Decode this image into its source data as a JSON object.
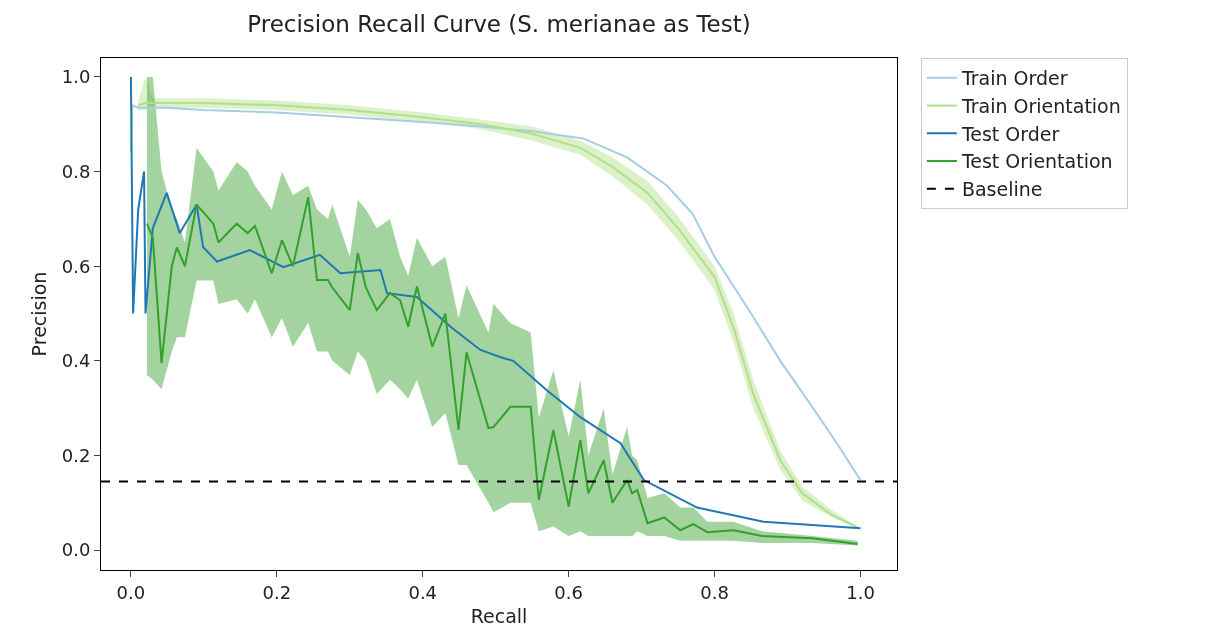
{
  "chart_data": {
    "type": "line",
    "title": "Precision Recall Curve (S. merianae as Test)",
    "xlabel": "Recall",
    "ylabel": "Precision",
    "xlim": [
      -0.041,
      1.05
    ],
    "ylim": [
      -0.042,
      1.04
    ],
    "xticks": [
      {
        "value": 0,
        "label": "0.0"
      },
      {
        "value": 0.2,
        "label": "0.2"
      },
      {
        "value": 0.4,
        "label": "0.4"
      },
      {
        "value": 0.6,
        "label": "0.6"
      },
      {
        "value": 0.8,
        "label": "0.8"
      },
      {
        "value": 1,
        "label": "1.0"
      }
    ],
    "yticks": [
      {
        "value": 0,
        "label": "0.0"
      },
      {
        "value": 0.2,
        "label": "0.2"
      },
      {
        "value": 0.4,
        "label": "0.4"
      },
      {
        "value": 0.6,
        "label": "0.6"
      },
      {
        "value": 0.8,
        "label": "0.8"
      },
      {
        "value": 1,
        "label": "1.0"
      }
    ],
    "grid": false,
    "legend": "top right",
    "line_style": "solid",
    "marker": "none",
    "series": [
      {
        "name": "Train Order",
        "color": "#a6cee3",
        "x": [
          0,
          0.002,
          0.01,
          0.05,
          0.1,
          0.2,
          0.3,
          0.4,
          0.48,
          0.55,
          0.62,
          0.68,
          0.735,
          0.77,
          0.8,
          0.85,
          0.89,
          0.935,
          0.97,
          1.0
        ],
        "values": [
          0.84,
          0.94,
          0.935,
          0.935,
          0.93,
          0.925,
          0.915,
          0.905,
          0.895,
          0.885,
          0.87,
          0.83,
          0.77,
          0.71,
          0.62,
          0.5,
          0.4,
          0.3,
          0.22,
          0.148
        ]
      },
      {
        "name": "Train Orientation",
        "color": "#b2df8a",
        "x": [
          0.01,
          0.02,
          0.03,
          0.1,
          0.2,
          0.3,
          0.4,
          0.48,
          0.55,
          0.616,
          0.66,
          0.708,
          0.75,
          0.8,
          0.826,
          0.853,
          0.89,
          0.92,
          0.96,
          0.996
        ],
        "values": [
          0.94,
          0.945,
          0.945,
          0.945,
          0.94,
          0.93,
          0.915,
          0.9,
          0.88,
          0.85,
          0.81,
          0.755,
          0.68,
          0.577,
          0.47,
          0.33,
          0.19,
          0.12,
          0.075,
          0.048
        ],
        "lower": [
          0.93,
          0.93,
          0.935,
          0.935,
          0.93,
          0.92,
          0.905,
          0.89,
          0.865,
          0.835,
          0.79,
          0.73,
          0.655,
          0.55,
          0.44,
          0.3,
          0.17,
          0.105,
          0.07,
          0.045
        ],
        "upper": [
          0.95,
          1.0,
          0.955,
          0.955,
          0.95,
          0.94,
          0.925,
          0.91,
          0.895,
          0.865,
          0.83,
          0.78,
          0.705,
          0.6,
          0.5,
          0.36,
          0.21,
          0.135,
          0.085,
          0.05
        ]
      },
      {
        "name": "Test Order",
        "color": "#1f78b4",
        "x": [
          0,
          0.003,
          0.01,
          0.018,
          0.02,
          0.03,
          0.049,
          0.067,
          0.09,
          0.099,
          0.118,
          0.163,
          0.209,
          0.259,
          0.287,
          0.342,
          0.351,
          0.392,
          0.438,
          0.479,
          0.506,
          0.524,
          0.57,
          0.616,
          0.671,
          0.703,
          0.776,
          0.867,
          1.0
        ],
        "values": [
          1.0,
          0.5,
          0.72,
          0.8,
          0.5,
          0.68,
          0.755,
          0.67,
          0.73,
          0.64,
          0.61,
          0.634,
          0.598,
          0.624,
          0.585,
          0.592,
          0.543,
          0.535,
          0.472,
          0.423,
          0.408,
          0.4,
          0.338,
          0.281,
          0.226,
          0.148,
          0.09,
          0.06,
          0.046
        ]
      },
      {
        "name": "Test Orientation",
        "color": "#33a02c",
        "x": [
          0.022,
          0.03,
          0.042,
          0.056,
          0.063,
          0.074,
          0.09,
          0.113,
          0.12,
          0.145,
          0.16,
          0.17,
          0.193,
          0.207,
          0.222,
          0.243,
          0.255,
          0.27,
          0.276,
          0.3,
          0.311,
          0.322,
          0.337,
          0.355,
          0.369,
          0.38,
          0.392,
          0.413,
          0.431,
          0.449,
          0.46,
          0.49,
          0.497,
          0.52,
          0.548,
          0.559,
          0.579,
          0.6,
          0.616,
          0.627,
          0.648,
          0.66,
          0.68,
          0.687,
          0.694,
          0.708,
          0.731,
          0.753,
          0.771,
          0.79,
          0.826,
          0.865,
          0.934,
          0.996
        ],
        "values": [
          0.69,
          0.66,
          0.395,
          0.6,
          0.64,
          0.6,
          0.73,
          0.69,
          0.65,
          0.69,
          0.67,
          0.685,
          0.585,
          0.655,
          0.6,
          0.746,
          0.571,
          0.571,
          0.555,
          0.507,
          0.628,
          0.555,
          0.507,
          0.543,
          0.528,
          0.472,
          0.557,
          0.43,
          0.5,
          0.254,
          0.418,
          0.258,
          0.26,
          0.303,
          0.303,
          0.106,
          0.254,
          0.092,
          0.233,
          0.12,
          0.19,
          0.1,
          0.148,
          0.12,
          0.127,
          0.057,
          0.069,
          0.042,
          0.055,
          0.038,
          0.042,
          0.03,
          0.025,
          0.013
        ],
        "lower": [
          0.37,
          0.36,
          0.34,
          0.42,
          0.45,
          0.45,
          0.57,
          0.57,
          0.52,
          0.53,
          0.5,
          0.53,
          0.45,
          0.49,
          0.43,
          0.48,
          0.42,
          0.42,
          0.4,
          0.37,
          0.42,
          0.4,
          0.33,
          0.36,
          0.34,
          0.32,
          0.36,
          0.26,
          0.29,
          0.18,
          0.18,
          0.1,
          0.08,
          0.1,
          0.1,
          0.04,
          0.05,
          0.03,
          0.04,
          0.03,
          0.03,
          0.03,
          0.03,
          0.03,
          0.04,
          0.03,
          0.03,
          0.02,
          0.02,
          0.02,
          0.02,
          0.015,
          0.015,
          0.01
        ],
        "upper": [
          1.0,
          1.0,
          0.8,
          0.72,
          0.7,
          0.65,
          0.85,
          0.8,
          0.76,
          0.82,
          0.8,
          0.77,
          0.72,
          0.8,
          0.75,
          0.77,
          0.72,
          0.7,
          0.73,
          0.62,
          0.74,
          0.72,
          0.68,
          0.7,
          0.62,
          0.58,
          0.66,
          0.6,
          0.62,
          0.49,
          0.56,
          0.46,
          0.52,
          0.48,
          0.46,
          0.28,
          0.38,
          0.24,
          0.36,
          0.2,
          0.3,
          0.16,
          0.26,
          0.2,
          0.19,
          0.11,
          0.12,
          0.09,
          0.09,
          0.06,
          0.06,
          0.04,
          0.03,
          0.02
        ]
      }
    ],
    "ref_lines": [
      {
        "axis": "y",
        "value": 0.145,
        "label": "Baseline",
        "color": "#000000",
        "line_style": "dashed"
      }
    ]
  }
}
